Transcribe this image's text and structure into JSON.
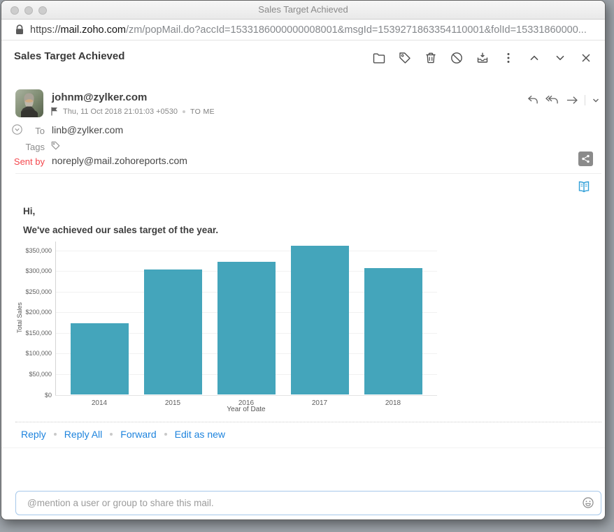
{
  "window": {
    "title": "Sales Target Achieved"
  },
  "browser": {
    "url_scheme": "https://",
    "url_host": "mail.zoho.com",
    "url_path": "/zm/popMail.do?accId=1533186000000008001&msgId=1539271863354110001&folId=15331860000..."
  },
  "mail": {
    "subject": "Sales Target Achieved",
    "from_email": "johnm@zylker.com",
    "date": "Thu, 11 Oct 2018 21:01:03 +0530",
    "to_me": "TO ME",
    "to_label": "To",
    "to_value": "linb@zylker.com",
    "tags_label": "Tags",
    "sent_by_label": "Sent by",
    "sent_by_value": "noreply@mail.zohoreports.com",
    "body_greeting": "Hi,",
    "body_line": "We've achieved our sales target of the year.",
    "actions": [
      {
        "label": "Reply"
      },
      {
        "label": "Reply All"
      },
      {
        "label": "Forward"
      },
      {
        "label": "Edit as new"
      }
    ],
    "toolbar_icons": [
      "move-to-folder",
      "tag",
      "delete",
      "mark-spam",
      "archive",
      "more-options",
      "previous-mail",
      "next-mail",
      "close"
    ]
  },
  "chart_data": {
    "type": "bar",
    "title": "",
    "categories": [
      "2014",
      "2015",
      "2016",
      "2017",
      "2018"
    ],
    "values": [
      173000,
      303000,
      322000,
      362000,
      307000
    ],
    "xlabel": "Year of Date",
    "ylabel": "Total Sales",
    "ylim": [
      0,
      370000
    ],
    "yticks": [
      0,
      50000,
      100000,
      150000,
      200000,
      250000,
      300000,
      350000
    ],
    "ytick_labels": [
      "$0",
      "$50,000",
      "$100,000",
      "$150,000",
      "$200,000",
      "$250,000",
      "$300,000",
      "$350,000"
    ],
    "bar_color": "#44a5bb",
    "grid": true,
    "legend": false
  },
  "share": {
    "placeholder": "@mention a user or group to share this mail."
  }
}
